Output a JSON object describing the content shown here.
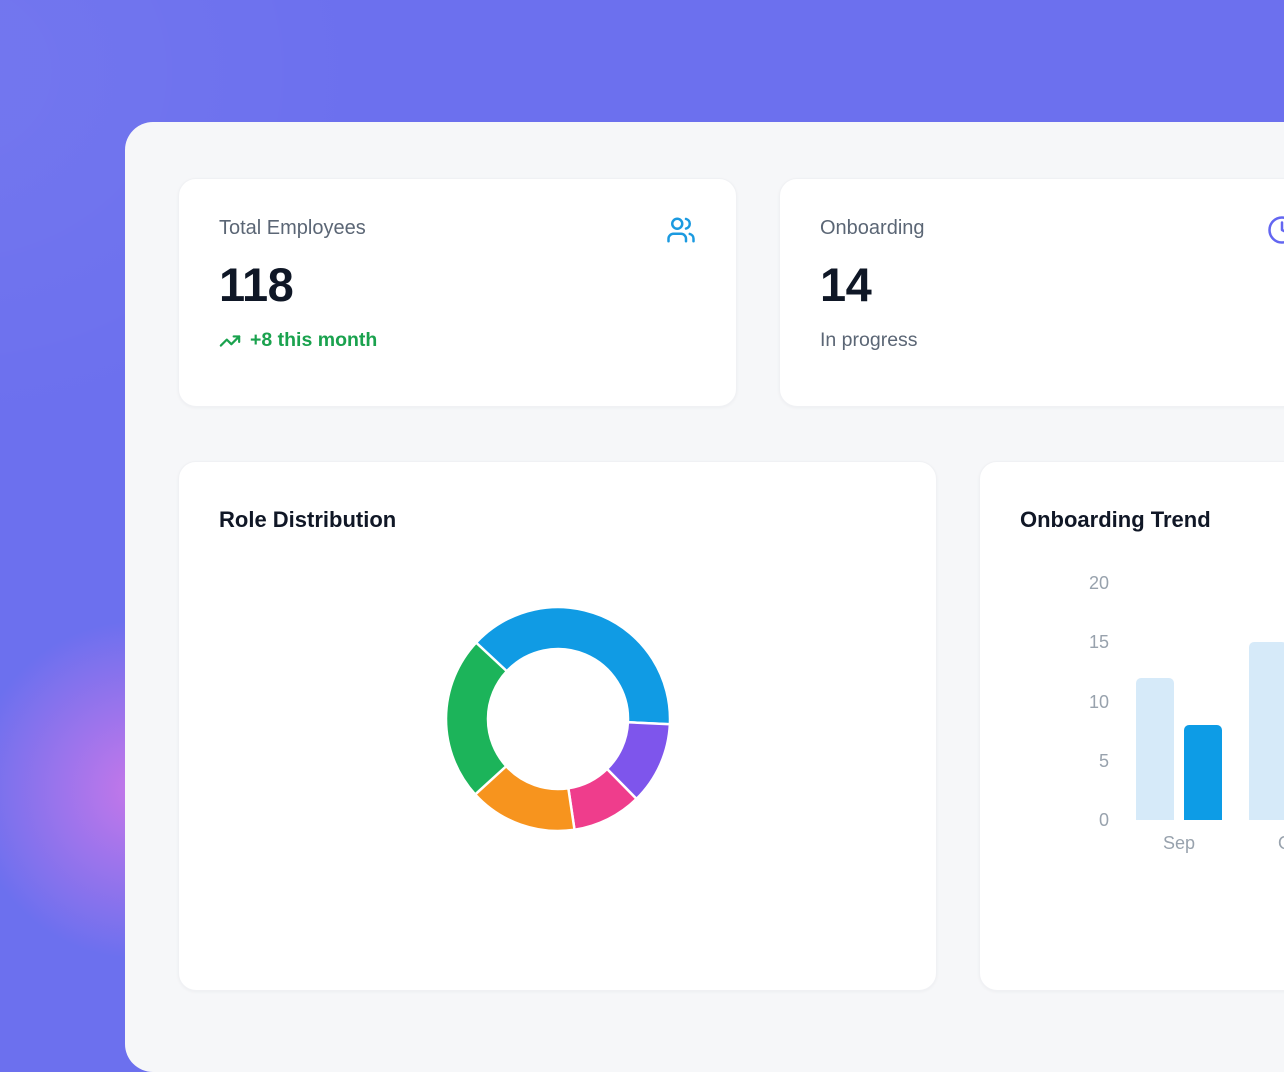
{
  "colors": {
    "background_violet": "#6c70ee",
    "background_glow_pink": "#d679e9",
    "panel_bg": "#f6f7f9",
    "card_bg": "#ffffff",
    "label_gray": "#5b6675",
    "value_dark": "#0f1726",
    "delta_green": "#1aa24e",
    "users_icon_blue": "#1b9ae0",
    "clock_icon_indigo": "#6366f1",
    "axis_gray": "#98a2ad"
  },
  "stat_cards": [
    {
      "label": "Total Employees",
      "value": "118",
      "delta": "+8 this month",
      "icon": "users-icon"
    },
    {
      "label": "Onboarding",
      "value": "14",
      "sub": "In progress",
      "icon": "clock-icon"
    }
  ],
  "chart_data": [
    {
      "id": "role_distribution",
      "type": "pie",
      "donut": true,
      "title": "Role Distribution",
      "legend": "none",
      "start_angle_deg": -47,
      "segments": [
        {
          "name": "blue",
          "color": "#109be4",
          "percent": 38.8
        },
        {
          "name": "purple",
          "color": "#7e55ec",
          "percent": 11.9
        },
        {
          "name": "pink",
          "color": "#ef3d8c",
          "percent": 10.0
        },
        {
          "name": "orange",
          "color": "#f7941e",
          "percent": 15.6
        },
        {
          "name": "green",
          "color": "#1cb45a",
          "percent": 23.7
        }
      ]
    },
    {
      "id": "onboarding_trend",
      "type": "bar",
      "title": "Onboarding Trend",
      "categories": [
        "Sep",
        "Oct"
      ],
      "series": [
        {
          "name": "light",
          "color": "#d6eaf9",
          "values": [
            12,
            15
          ]
        },
        {
          "name": "dark",
          "color": "#0d9ce6",
          "values": [
            8,
            null
          ]
        }
      ],
      "ylim": [
        0,
        20
      ],
      "yticks": [
        0,
        5,
        10,
        15,
        20
      ],
      "grid": false,
      "legend": "none"
    }
  ]
}
